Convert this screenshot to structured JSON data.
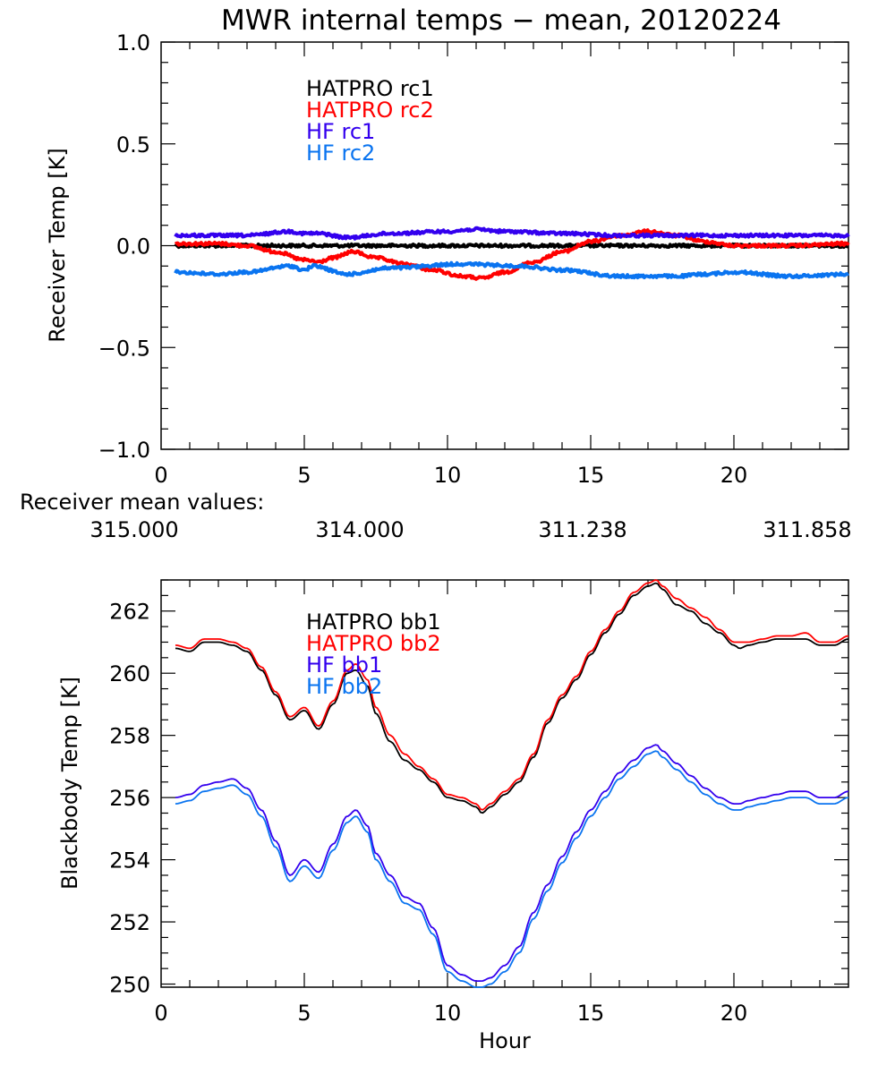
{
  "title": "MWR internal temps − mean, 20120224",
  "mean_values": {
    "label": "Receiver mean values:",
    "values": [
      {
        "text": "315.000",
        "color": "#000000"
      },
      {
        "text": "314.000",
        "color": "#ff0000"
      },
      {
        "text": "311.238",
        "color": "#3300ee"
      },
      {
        "text": "311.858",
        "color": "#0a74f0"
      }
    ]
  },
  "chart_data": [
    {
      "type": "line",
      "title": "MWR internal temps − mean, 20120224",
      "xlabel": "",
      "ylabel": "Receiver Temp [K]",
      "xlim": [
        0,
        24
      ],
      "ylim": [
        -1.0,
        1.0
      ],
      "xticks": [
        "0",
        "5",
        "10",
        "15",
        "20"
      ],
      "yticks": [
        "−1.0",
        "−0.5",
        "0.0",
        "0.5",
        "1.0"
      ],
      "grid": false,
      "legend_position": "top-center",
      "series": [
        {
          "name": "HATPRO rc1",
          "color": "#000000",
          "x": [
            0.5,
            2,
            4,
            6,
            8,
            10,
            12,
            14,
            16,
            18,
            20,
            22,
            24
          ],
          "y": [
            0.0,
            0.0,
            0.0,
            0.0,
            0.0,
            0.0,
            0.0,
            0.0,
            0.0,
            0.0,
            0.0,
            0.0,
            0.0
          ]
        },
        {
          "name": "HATPRO rc2",
          "color": "#ff0000",
          "x": [
            0.5,
            2,
            3,
            4,
            5,
            5.5,
            6,
            6.7,
            7.5,
            8.5,
            9.5,
            10.5,
            11.2,
            12,
            13,
            14,
            15,
            16,
            17,
            18,
            19,
            20,
            22,
            24
          ],
          "y": [
            0.01,
            0.01,
            0.0,
            -0.03,
            -0.07,
            -0.08,
            -0.06,
            -0.03,
            -0.06,
            -0.09,
            -0.12,
            -0.15,
            -0.16,
            -0.13,
            -0.08,
            -0.03,
            0.02,
            0.05,
            0.07,
            0.05,
            0.02,
            0.0,
            0.0,
            0.01
          ]
        },
        {
          "name": "HF rc1",
          "color": "#3300ee",
          "x": [
            0.5,
            2,
            3,
            4.5,
            5,
            5.5,
            6.5,
            8,
            10,
            11,
            12,
            14,
            16,
            18,
            20,
            22,
            24
          ],
          "y": [
            0.05,
            0.05,
            0.05,
            0.07,
            0.06,
            0.06,
            0.04,
            0.06,
            0.07,
            0.08,
            0.07,
            0.06,
            0.05,
            0.05,
            0.05,
            0.05,
            0.05
          ]
        },
        {
          "name": "HF rc2",
          "color": "#0a74f0",
          "x": [
            0.5,
            2,
            3,
            4.5,
            5,
            5.3,
            6.5,
            8,
            10.5,
            12.5,
            14,
            16,
            18,
            19,
            20,
            22,
            24
          ],
          "y": [
            -0.13,
            -0.14,
            -0.13,
            -0.1,
            -0.12,
            -0.1,
            -0.14,
            -0.11,
            -0.09,
            -0.1,
            -0.12,
            -0.15,
            -0.15,
            -0.14,
            -0.13,
            -0.15,
            -0.14
          ]
        }
      ]
    },
    {
      "type": "line",
      "title": "",
      "xlabel": "Hour",
      "ylabel": "Blackbody Temp [K]",
      "xlim": [
        0,
        24
      ],
      "ylim": [
        249.9,
        263.0
      ],
      "xticks": [
        "0",
        "5",
        "10",
        "15",
        "20"
      ],
      "yticks": [
        "250",
        "252",
        "254",
        "256",
        "258",
        "260",
        "262"
      ],
      "grid": false,
      "legend_position": "top-center",
      "series": [
        {
          "name": "HATPRO bb1",
          "color": "#000000",
          "x": [
            0.5,
            1,
            1.5,
            2,
            2.5,
            3,
            3.5,
            4,
            4.5,
            5,
            5.5,
            6,
            6.5,
            6.8,
            7.2,
            7.5,
            8,
            8.5,
            9,
            9.5,
            10,
            10.5,
            11,
            11.2,
            11.5,
            12,
            12.5,
            13,
            13.5,
            14,
            14.5,
            15,
            15.5,
            16,
            16.5,
            17,
            17.3,
            17.5,
            18,
            18.5,
            19,
            19.5,
            20,
            20.2,
            20.5,
            21,
            21.5,
            22,
            22.5,
            23,
            23.5,
            24
          ],
          "y": [
            260.8,
            260.7,
            261.0,
            261.0,
            260.9,
            260.7,
            260.1,
            259.3,
            258.5,
            258.8,
            258.2,
            259.0,
            260.0,
            260.1,
            259.6,
            258.7,
            257.8,
            257.2,
            256.9,
            256.5,
            256.0,
            255.9,
            255.7,
            255.5,
            255.7,
            256.1,
            256.5,
            257.3,
            258.4,
            259.2,
            259.8,
            260.6,
            261.3,
            261.9,
            262.5,
            262.8,
            262.9,
            262.7,
            262.2,
            262.0,
            261.6,
            261.3,
            260.9,
            260.8,
            260.9,
            261.0,
            261.1,
            261.1,
            261.1,
            260.9,
            260.9,
            261.1
          ]
        },
        {
          "name": "HATPRO bb2",
          "color": "#ff0000",
          "x": [
            0.5,
            1,
            1.5,
            2,
            2.5,
            3,
            3.5,
            4,
            4.5,
            5,
            5.5,
            6,
            6.5,
            6.8,
            7.2,
            7.5,
            8,
            8.5,
            9,
            9.5,
            10,
            10.5,
            11,
            11.2,
            11.5,
            12,
            12.5,
            13,
            13.5,
            14,
            14.5,
            15,
            15.5,
            16,
            16.5,
            17,
            17.3,
            17.5,
            18,
            18.5,
            19,
            19.5,
            20,
            20.2,
            20.5,
            21,
            21.5,
            22,
            22.5,
            23,
            23.5,
            24
          ],
          "y": [
            260.9,
            260.8,
            261.1,
            261.1,
            261.0,
            260.8,
            260.2,
            259.4,
            258.6,
            258.9,
            258.3,
            259.1,
            260.1,
            260.3,
            259.8,
            258.9,
            258.0,
            257.4,
            257.0,
            256.6,
            256.1,
            256.0,
            255.8,
            255.6,
            255.8,
            256.2,
            256.6,
            257.4,
            258.5,
            259.3,
            259.9,
            260.7,
            261.4,
            262.0,
            262.6,
            262.9,
            263.0,
            262.8,
            262.4,
            262.1,
            261.8,
            261.4,
            261.0,
            261.0,
            261.0,
            261.1,
            261.2,
            261.2,
            261.3,
            261.0,
            261.0,
            261.2
          ]
        },
        {
          "name": "HF bb1",
          "color": "#3300ee",
          "x": [
            0.5,
            1,
            1.5,
            2,
            2.5,
            3,
            3.5,
            4,
            4.5,
            5,
            5.5,
            6,
            6.5,
            6.8,
            7.2,
            7.5,
            8,
            8.5,
            9,
            9.5,
            10,
            10.5,
            11,
            11.2,
            11.5,
            12,
            12.5,
            13,
            13.5,
            14,
            14.5,
            15,
            15.5,
            16,
            16.5,
            17,
            17.3,
            17.5,
            18,
            18.5,
            19,
            19.5,
            20,
            20.2,
            20.5,
            21,
            21.5,
            22,
            22.5,
            23,
            23.5,
            24
          ],
          "y": [
            256.0,
            256.1,
            256.4,
            256.5,
            256.6,
            256.3,
            255.6,
            254.6,
            253.5,
            254.0,
            253.6,
            254.5,
            255.4,
            255.6,
            255.1,
            254.2,
            253.5,
            252.8,
            252.6,
            251.8,
            250.6,
            250.3,
            250.1,
            250.1,
            250.2,
            250.6,
            251.2,
            252.3,
            253.2,
            254.1,
            254.9,
            255.6,
            256.2,
            256.8,
            257.2,
            257.6,
            257.7,
            257.5,
            257.1,
            256.7,
            256.3,
            256.0,
            255.8,
            255.8,
            255.9,
            256.0,
            256.1,
            256.2,
            256.2,
            256.0,
            256.0,
            256.2
          ]
        },
        {
          "name": "HF bb2",
          "color": "#0a74f0",
          "x": [
            0.5,
            1,
            1.5,
            2,
            2.5,
            3,
            3.5,
            4,
            4.5,
            5,
            5.5,
            6,
            6.5,
            6.8,
            7.2,
            7.5,
            8,
            8.5,
            9,
            9.5,
            10,
            10.5,
            11,
            11.2,
            11.5,
            12,
            12.5,
            13,
            13.5,
            14,
            14.5,
            15,
            15.5,
            16,
            16.5,
            17,
            17.3,
            17.5,
            18,
            18.5,
            19,
            19.5,
            20,
            20.2,
            20.5,
            21,
            21.5,
            22,
            22.5,
            23,
            23.5,
            24
          ],
          "y": [
            255.8,
            255.9,
            256.2,
            256.3,
            256.4,
            256.1,
            255.4,
            254.4,
            253.3,
            253.8,
            253.4,
            254.3,
            255.2,
            255.4,
            254.9,
            254.0,
            253.3,
            252.6,
            252.4,
            251.6,
            250.4,
            250.1,
            249.9,
            249.9,
            250.0,
            250.4,
            251.0,
            252.1,
            253.0,
            253.9,
            254.7,
            255.4,
            256.0,
            256.6,
            257.0,
            257.4,
            257.5,
            257.3,
            256.9,
            256.5,
            256.1,
            255.8,
            255.6,
            255.6,
            255.7,
            255.8,
            255.9,
            256.0,
            256.0,
            255.8,
            255.8,
            256.0
          ]
        }
      ]
    }
  ]
}
